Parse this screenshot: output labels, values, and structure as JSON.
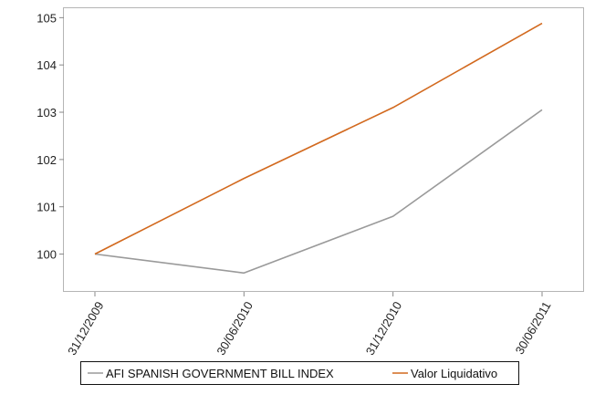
{
  "chart_data": {
    "type": "line",
    "categories": [
      "31/12/2009",
      "30/06/2010",
      "31/12/2010",
      "30/06/2011"
    ],
    "series": [
      {
        "name": "AFI SPANISH GOVERNMENT BILL INDEX",
        "color": "#9a9a9a",
        "values": [
          100.0,
          99.6,
          100.8,
          103.05
        ]
      },
      {
        "name": "Valor Liquidativo",
        "color": "#d2691e",
        "values": [
          100.0,
          101.6,
          103.1,
          104.88
        ]
      }
    ],
    "title": "",
    "xlabel": "",
    "ylabel": "",
    "ylim": [
      99.2,
      105.2
    ],
    "yticks": [
      "100",
      "101",
      "102",
      "103",
      "104",
      "105"
    ],
    "grid": false,
    "legend_position": "bottom"
  }
}
